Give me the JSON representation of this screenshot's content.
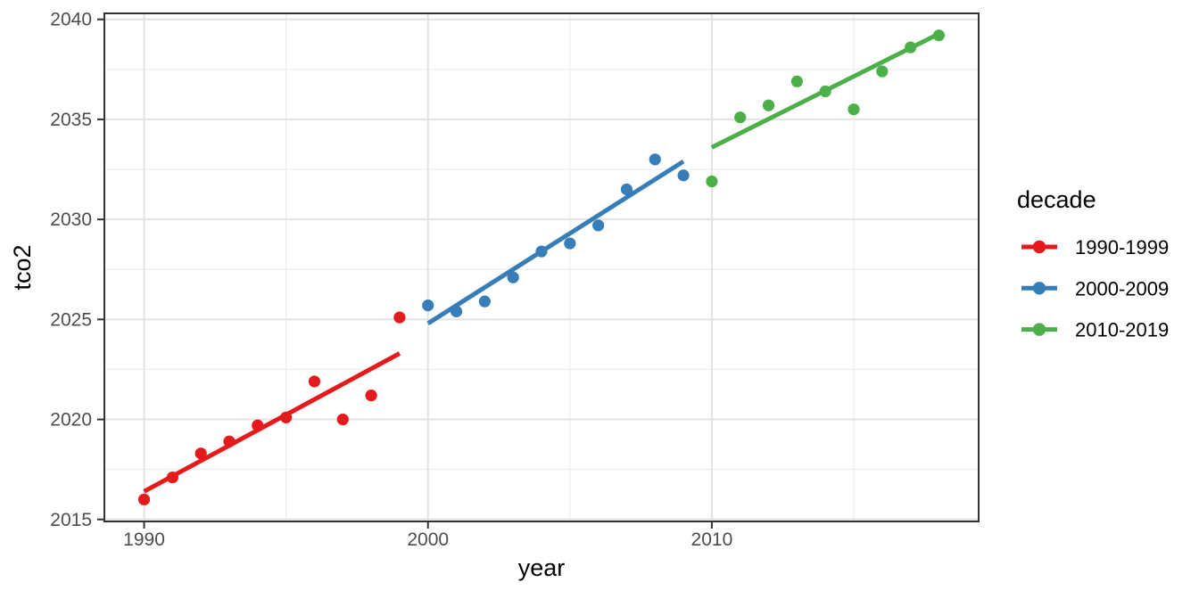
{
  "chart_data": {
    "type": "scatter",
    "title": "",
    "xlabel": "year",
    "ylabel": "tco2",
    "grid": true,
    "xlim": [
      1988.6,
      2019.4
    ],
    "ylim": [
      2014.9,
      2040.3
    ],
    "x_ticks": [
      1990,
      2000,
      2010
    ],
    "x_minor_ticks": [
      1995,
      2005,
      2015
    ],
    "y_ticks": [
      2015,
      2020,
      2025,
      2030,
      2035,
      2040
    ],
    "y_minor_ticks": [
      2017.5,
      2022.5,
      2027.5,
      2032.5,
      2037.5
    ],
    "legend": {
      "title": "decade",
      "position": "right"
    },
    "series": [
      {
        "name": "1990-1999",
        "color": "#E41A1C",
        "x": [
          1990,
          1991,
          1992,
          1993,
          1994,
          1995,
          1996,
          1997,
          1998,
          1999
        ],
        "y": [
          2016.0,
          2017.1,
          2018.3,
          2018.9,
          2019.7,
          2020.1,
          2021.9,
          2020.0,
          2021.2,
          2025.1
        ],
        "trend": {
          "x": [
            1990,
            1999
          ],
          "y": [
            2016.4,
            2023.3
          ]
        }
      },
      {
        "name": "2000-2009",
        "color": "#377EB8",
        "x": [
          2000,
          2001,
          2002,
          2003,
          2004,
          2005,
          2006,
          2007,
          2008,
          2009
        ],
        "y": [
          2025.7,
          2025.4,
          2025.9,
          2027.1,
          2028.4,
          2028.8,
          2029.7,
          2031.5,
          2033.0,
          2032.2
        ],
        "trend": {
          "x": [
            2000,
            2009
          ],
          "y": [
            2024.8,
            2032.9
          ]
        }
      },
      {
        "name": "2010-2019",
        "color": "#4DAF4A",
        "x": [
          2010,
          2011,
          2012,
          2013,
          2014,
          2015,
          2016,
          2017,
          2018
        ],
        "y": [
          2031.9,
          2035.1,
          2035.7,
          2036.9,
          2036.4,
          2035.5,
          2037.4,
          2038.6,
          2039.2
        ],
        "trend": {
          "x": [
            2010,
            2018.1
          ],
          "y": [
            2033.6,
            2039.35
          ]
        }
      }
    ],
    "style": {
      "major_grid_color": "#e3e3e3",
      "minor_grid_color": "#ededed",
      "panel_border_color": "#333333",
      "tick_mark_color": "#333333",
      "tick_label_color": "#4d4d4d",
      "background": "#ffffff",
      "point_radius": 6.6,
      "line_width": 5
    }
  }
}
